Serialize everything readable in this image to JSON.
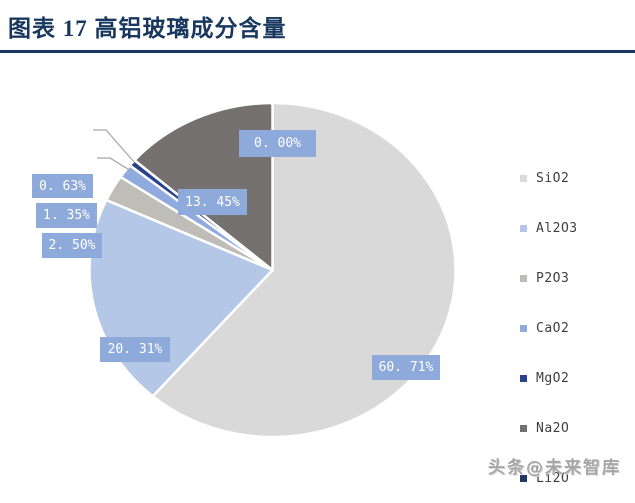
{
  "header": {
    "figure_label": "图表 17",
    "title": "图表 17  高铝玻璃成分含量"
  },
  "chart_data": {
    "type": "pie",
    "title": "高铝玻璃成分含量",
    "categories": [
      "SiO2",
      "Al2O3",
      "P2O3",
      "CaO2",
      "MgO2",
      "Na2O",
      "Li2O"
    ],
    "values": [
      60.71,
      20.31,
      2.5,
      1.35,
      0.63,
      13.45,
      0.0
    ],
    "labels": [
      "60. 71%",
      "20. 31%",
      "2. 50%",
      "1. 35%",
      "0. 63%",
      "13. 45%",
      "0. 00%"
    ],
    "colors": [
      "#D9D9D9",
      "#B4C7E7",
      "#BFBDB8",
      "#8FAADC",
      "#27418F",
      "#767171",
      "#1F3864"
    ],
    "direction": "clockwise",
    "start_angle_deg": 0,
    "legend_position": "right",
    "slice_border_color": "#FFFFFF",
    "label_box_color": "#8EAADB",
    "label_text_color": "#FFFFFF",
    "leader_line_color": "#A6A6A6"
  },
  "footer": {
    "watermark": "头条@未来智库"
  },
  "theme": {
    "title_color": "#17375E",
    "rule_color": "#17375E",
    "legend_text_color": "#3F3F3F"
  }
}
